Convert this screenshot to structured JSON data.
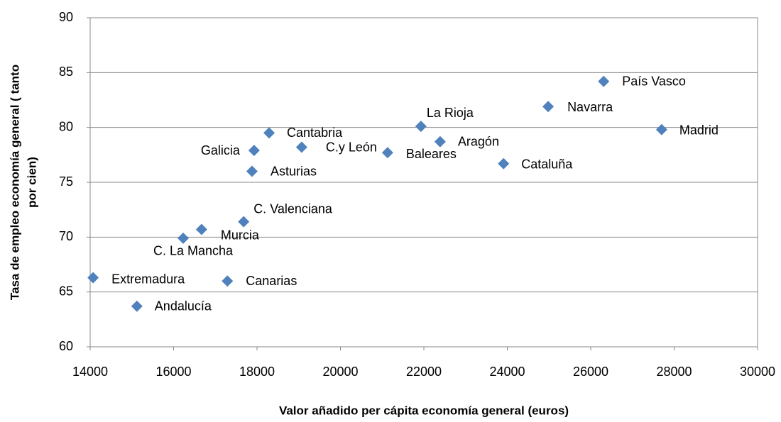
{
  "chart_data": {
    "type": "scatter",
    "x_label": "Valor añadido per cápita economía general (euros)",
    "y_label": [
      "Tasa de empleo economía general ( tanto",
      "por cien)"
    ],
    "point_labels": [
      "Extremadura",
      "Andalucía",
      "C. La Mancha",
      "Murcia",
      "C. Valenciana",
      "Canarias",
      "Asturias",
      "Galicia",
      "Cantabria",
      "C.y León",
      "Baleares",
      "La Rioja",
      "Aragón",
      "Cataluña",
      "Navarra",
      "País Vasco",
      "Madrid"
    ],
    "x": [
      14070,
      15120,
      16230,
      16670,
      17680,
      17290,
      17880,
      17930,
      18290,
      19070,
      21130,
      21930,
      22390,
      23910,
      24980,
      26310,
      27700
    ],
    "values": [
      66.3,
      63.7,
      69.9,
      70.7,
      71.4,
      66.0,
      76.0,
      77.9,
      79.5,
      78.2,
      77.7,
      80.1,
      78.7,
      76.7,
      81.9,
      84.2,
      79.8
    ],
    "color": "#4f81bd",
    "xlim": [
      14000,
      30000
    ],
    "xticks": [
      14000,
      16000,
      18000,
      20000,
      22000,
      24000,
      26000,
      28000,
      30000
    ],
    "ylim": [
      60,
      90
    ],
    "yticks": [
      60,
      65,
      70,
      75,
      80,
      85,
      90
    ],
    "grid": true
  }
}
